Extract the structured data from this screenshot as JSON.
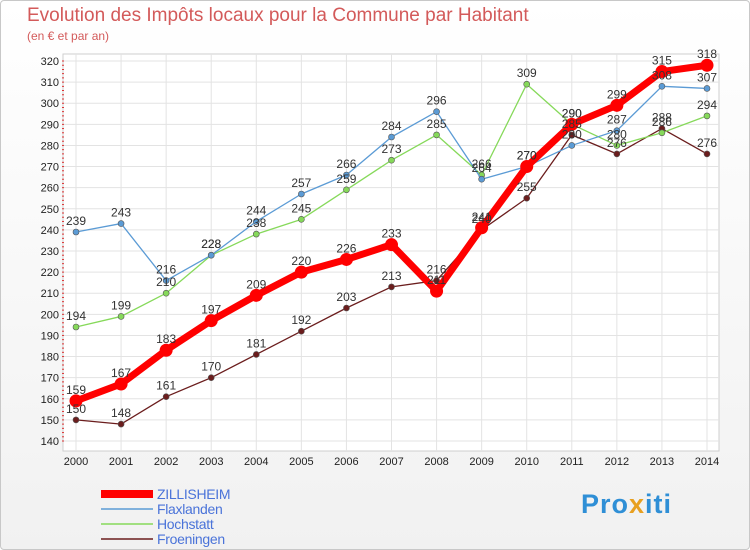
{
  "chart_data": {
    "type": "line",
    "title": "Evolution des Impôts locaux pour la Commune par Habitant",
    "subtitle": "(en € et par an)",
    "categories": [
      "2000",
      "2001",
      "2002",
      "2003",
      "2004",
      "2005",
      "2006",
      "2007",
      "2008",
      "2009",
      "2010",
      "2011",
      "2012",
      "2013",
      "2014"
    ],
    "ylim": [
      140,
      320
    ],
    "yticks": [
      140,
      150,
      160,
      170,
      180,
      190,
      200,
      210,
      220,
      230,
      240,
      250,
      260,
      270,
      280,
      290,
      300,
      310,
      320
    ],
    "grid": true,
    "legend_position": "bottom-left",
    "series": [
      {
        "name": "Froeningen",
        "color": "#6b1d1d",
        "values": [
          150,
          148,
          161,
          170,
          181,
          192,
          203,
          213,
          216,
          240,
          255,
          285,
          276,
          288,
          276
        ]
      },
      {
        "name": "Hochstatt",
        "color": "#86d95a",
        "values": [
          194,
          199,
          210,
          228,
          238,
          245,
          259,
          273,
          285,
          266,
          309,
          290,
          280,
          286,
          294
        ]
      },
      {
        "name": "Flaxlanden",
        "color": "#5b9bd5",
        "values": [
          239,
          243,
          216,
          228,
          244,
          257,
          266,
          284,
          296,
          264,
          270,
          280,
          287,
          308,
          307
        ]
      },
      {
        "name": "ZILLISHEIM",
        "color": "#ff0000",
        "values": [
          159,
          167,
          183,
          197,
          209,
          220,
          226,
          233,
          211,
          241,
          270,
          290,
          299,
          315,
          318
        ]
      }
    ]
  },
  "legend": {
    "ZILLISHEIM": "ZILLISHEIM",
    "Flaxlanden": "Flaxlanden",
    "Hochstatt": "Hochstatt",
    "Froeningen": "Froeningen"
  },
  "logo": {
    "p1": "Pro",
    "p2": "x",
    "p3": "iti"
  }
}
